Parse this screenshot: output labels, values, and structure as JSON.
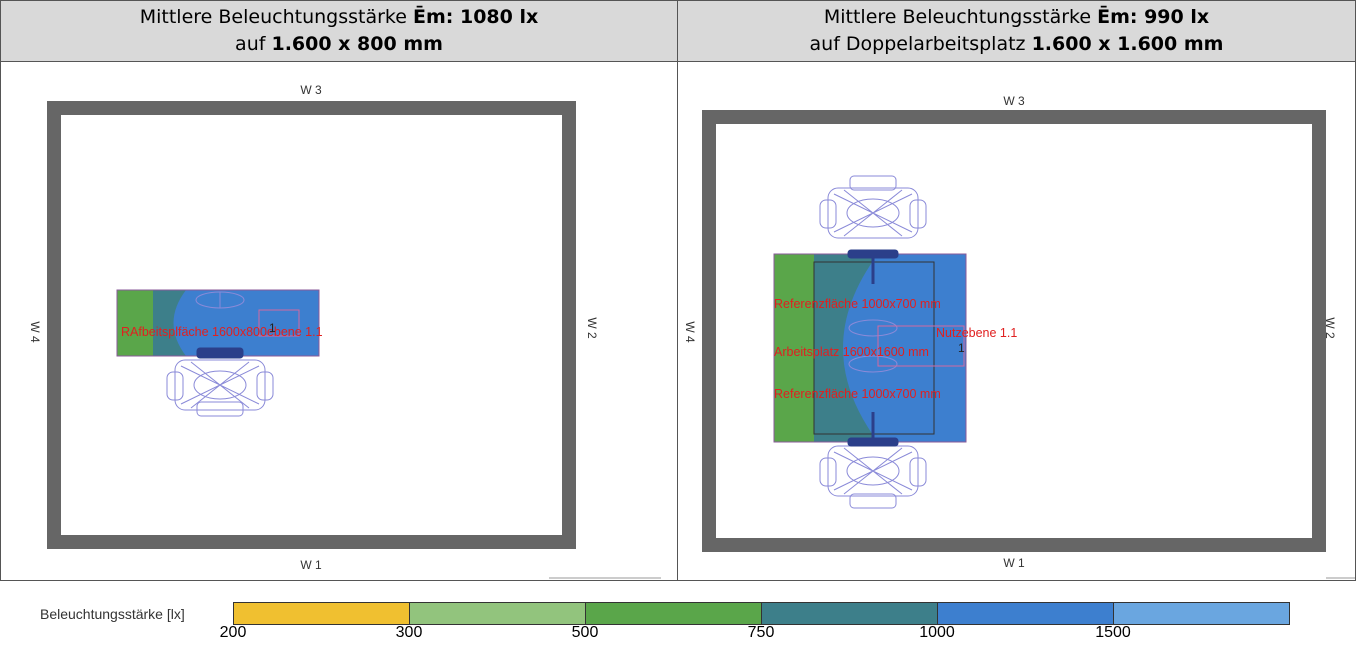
{
  "left": {
    "header": {
      "line1_prefix": "Mittlere Beleuchtungsstärke ",
      "line1_bold": "Ēm: 1080 lx",
      "line2_prefix": "auf ",
      "line2_bold": "1.600 x 800 mm"
    },
    "walls": {
      "top": "W 3",
      "bottom": "W 1",
      "left": "W 4",
      "right": "W 2"
    },
    "overlay_text": "RAfbeitsplfäche 1600x800ebene 1.1",
    "marker": "1"
  },
  "right": {
    "header": {
      "line1_prefix": "Mittlere Beleuchtungsstärke ",
      "line1_bold": "Ēm: 990 lx",
      "line2_prefix": "auf Doppelarbeitsplatz ",
      "line2_bold": "1.600 x 1.600 mm"
    },
    "walls": {
      "top": "W 3",
      "bottom": "W 1",
      "left": "W 4",
      "right": "W 2"
    },
    "labels": {
      "ref_top": "Referenzfläche 1000x700 mm",
      "nutz": "Nutzebene 1.1",
      "arbeit": "Arbeitsplatz 1600x1600 mm",
      "ref_bottom": "Referenzfläche 1000x700 mm"
    },
    "marker": "1"
  },
  "legend": {
    "title": "Beleuchtungsstärke [lx]",
    "ticks": [
      "200",
      "300",
      "500",
      "750",
      "1000",
      "1500"
    ],
    "colors": [
      "#f0c030",
      "#92c47d",
      "#5aa64a",
      "#3d7f8a",
      "#3d7fcf",
      "#6aa6e0"
    ]
  }
}
